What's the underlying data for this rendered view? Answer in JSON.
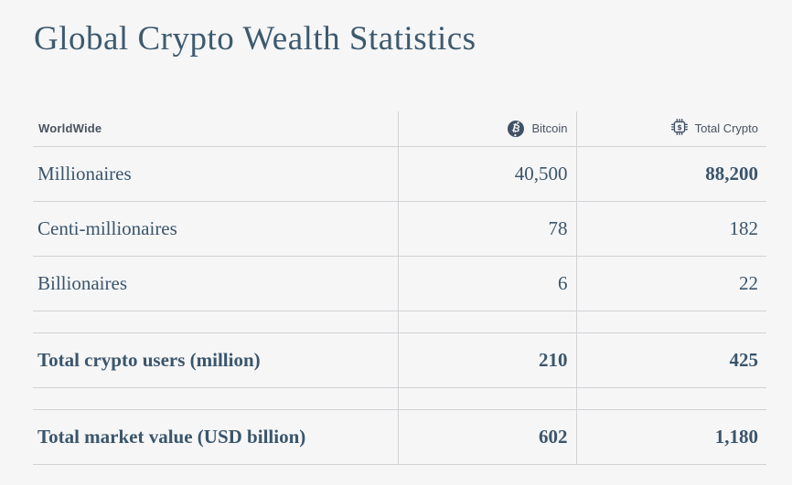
{
  "page": {
    "title": "Global Crypto Wealth Statistics"
  },
  "table": {
    "header": {
      "worldwide": "WorldWide",
      "bitcoin": "Bitcoin",
      "total_crypto": "Total Crypto"
    },
    "rows": [
      {
        "label": "Millionaires",
        "bitcoin": "40,500",
        "total_crypto": "88,200",
        "label_bold": false,
        "bitcoin_bold": false,
        "total_bold": true,
        "spacer_before": false
      },
      {
        "label": "Centi-millionaires",
        "bitcoin": "78",
        "total_crypto": "182",
        "label_bold": false,
        "bitcoin_bold": false,
        "total_bold": false,
        "spacer_before": false
      },
      {
        "label": "Billionaires",
        "bitcoin": "6",
        "total_crypto": "22",
        "label_bold": false,
        "bitcoin_bold": false,
        "total_bold": false,
        "spacer_before": false
      },
      {
        "label": "Total crypto users (million)",
        "bitcoin": "210",
        "total_crypto": "425",
        "label_bold": true,
        "bitcoin_bold": true,
        "total_bold": true,
        "spacer_before": true
      },
      {
        "label": "Total market value (USD billion)",
        "bitcoin": "602",
        "total_crypto": "1,180",
        "label_bold": true,
        "bitcoin_bold": true,
        "total_bold": true,
        "spacer_before": true
      }
    ]
  },
  "icons": {
    "bitcoin": "bitcoin-icon",
    "total_crypto": "chip-dollar-icon",
    "bitcoin_glyph": "₿"
  },
  "colors": {
    "background": "#f6f6f7",
    "grid_line": "#d2d3d6",
    "title_text": "#3d5a6e",
    "table_text": "#3a556b",
    "header_text": "#49525e",
    "icon": "#405164"
  },
  "chart_data": {
    "type": "table",
    "title": "Global Crypto Wealth Statistics",
    "columns": [
      "WorldWide",
      "Bitcoin",
      "Total Crypto"
    ],
    "rows": [
      [
        "Millionaires",
        40500,
        88200
      ],
      [
        "Centi-millionaires",
        78,
        182
      ],
      [
        "Billionaires",
        6,
        22
      ],
      [
        "Total crypto users (million)",
        210,
        425
      ],
      [
        "Total market value (USD billion)",
        602,
        1180
      ]
    ]
  }
}
